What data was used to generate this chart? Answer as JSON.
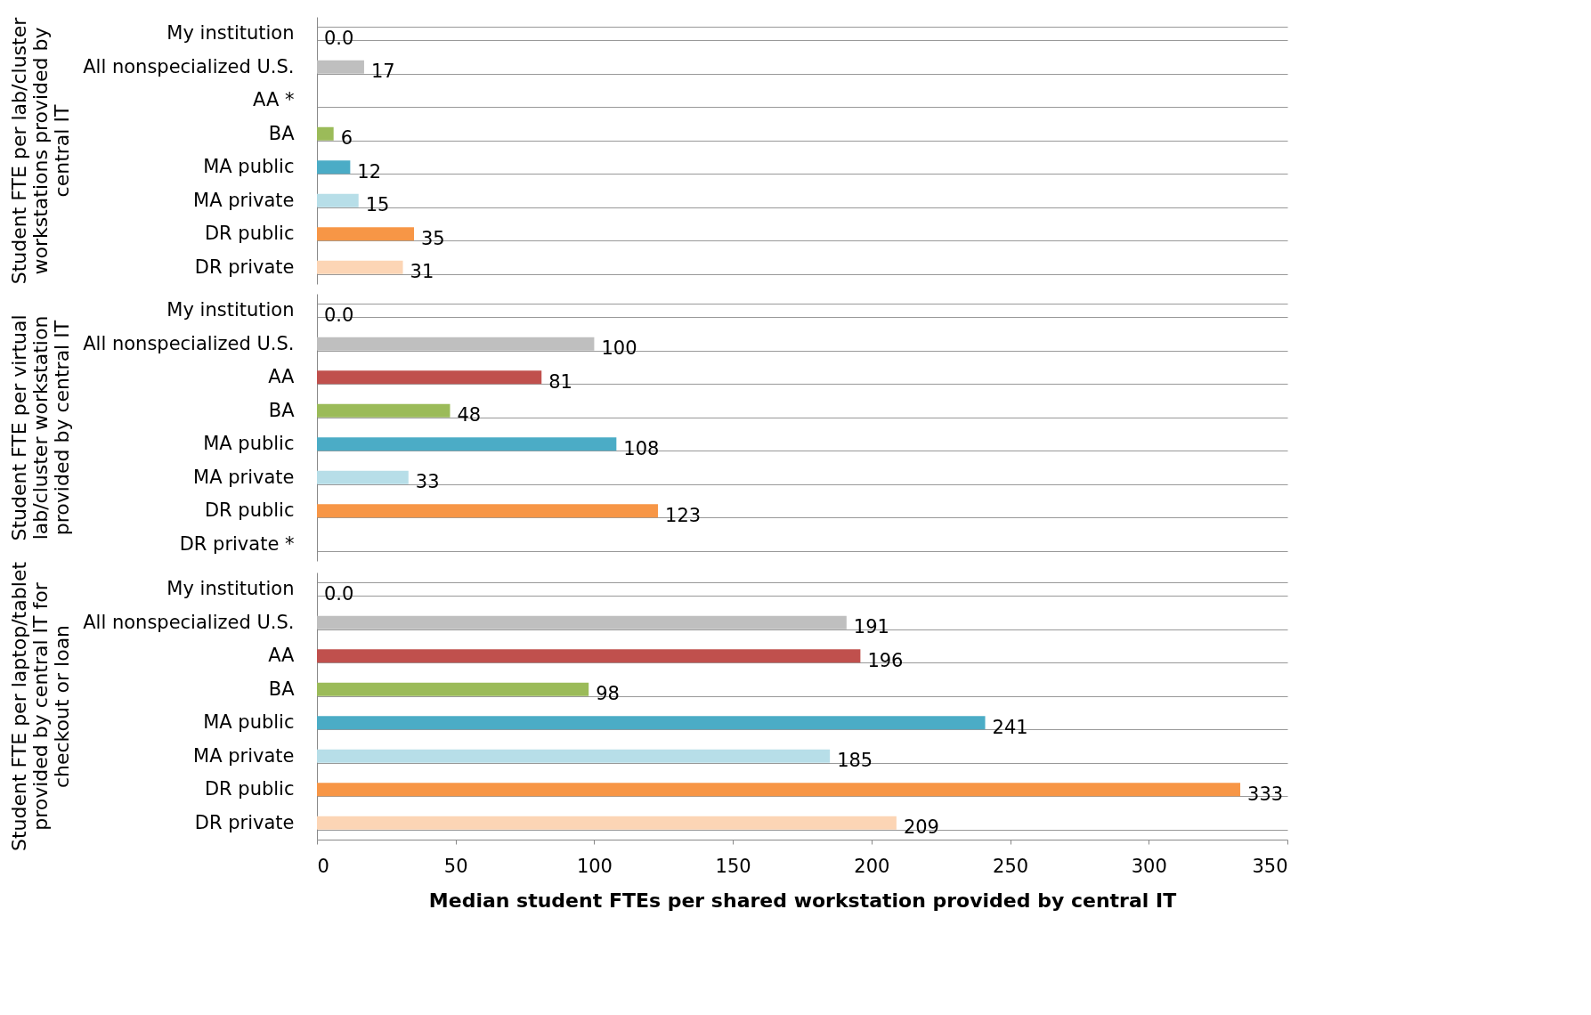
{
  "chart_data": [
    {
      "type": "bar",
      "orientation": "horizontal",
      "ylabel": "Student FTE per lab/cluster workstations provided by central IT",
      "categories": [
        "My institution",
        "All nonspecialized U.S.",
        "AA *",
        "BA",
        "MA public",
        "MA private",
        "DR public",
        "DR private"
      ],
      "values": [
        0,
        17,
        null,
        6,
        12,
        15,
        35,
        31
      ],
      "value_labels": [
        "0.0",
        "17",
        null,
        "6",
        "12",
        "15",
        "35",
        "31"
      ],
      "colors": [
        "#bfbfbf",
        "#bfbfbf",
        "#c0504d",
        "#9bbb59",
        "#4bacc6",
        "#b7dee8",
        "#f79646",
        "#fcd5b5"
      ],
      "xlim": [
        0,
        350
      ],
      "grid": "y",
      "tick_labels": "y"
    },
    {
      "type": "bar",
      "orientation": "horizontal",
      "ylabel": "Student FTE per virtual lab/cluster workstation provided by central IT",
      "categories": [
        "My institution",
        "All nonspecialized U.S.",
        "AA",
        "BA",
        "MA public",
        "MA private",
        "DR public",
        "DR private *"
      ],
      "values": [
        0,
        100,
        81,
        48,
        108,
        33,
        123,
        null
      ],
      "value_labels": [
        "0.0",
        "100",
        "81",
        "48",
        "108",
        "33",
        "123",
        null
      ],
      "colors": [
        "#bfbfbf",
        "#bfbfbf",
        "#c0504d",
        "#9bbb59",
        "#4bacc6",
        "#b7dee8",
        "#f79646",
        "#fcd5b5"
      ],
      "xlim": [
        0,
        350
      ],
      "grid": "y",
      "tick_labels": "y"
    },
    {
      "type": "bar",
      "orientation": "horizontal",
      "ylabel": "Student FTE per laptop/tablet provided by central IT for checkout or loan",
      "xlabel": "Median student FTEs per shared workstation provided by central IT",
      "categories": [
        "My institution",
        "All nonspecialized U.S.",
        "AA",
        "BA",
        "MA public",
        "MA private",
        "DR public",
        "DR private"
      ],
      "values": [
        0,
        191,
        196,
        98,
        241,
        185,
        333,
        209
      ],
      "value_labels": [
        "0.0",
        "191",
        "196",
        "98",
        "241",
        "185",
        "333",
        "209"
      ],
      "colors": [
        "#bfbfbf",
        "#bfbfbf",
        "#c0504d",
        "#9bbb59",
        "#4bacc6",
        "#b7dee8",
        "#f79646",
        "#fcd5b5"
      ],
      "xlim": [
        0,
        350
      ],
      "xticks": [
        0,
        50,
        100,
        150,
        200,
        250,
        300,
        350
      ],
      "grid": "y"
    }
  ]
}
